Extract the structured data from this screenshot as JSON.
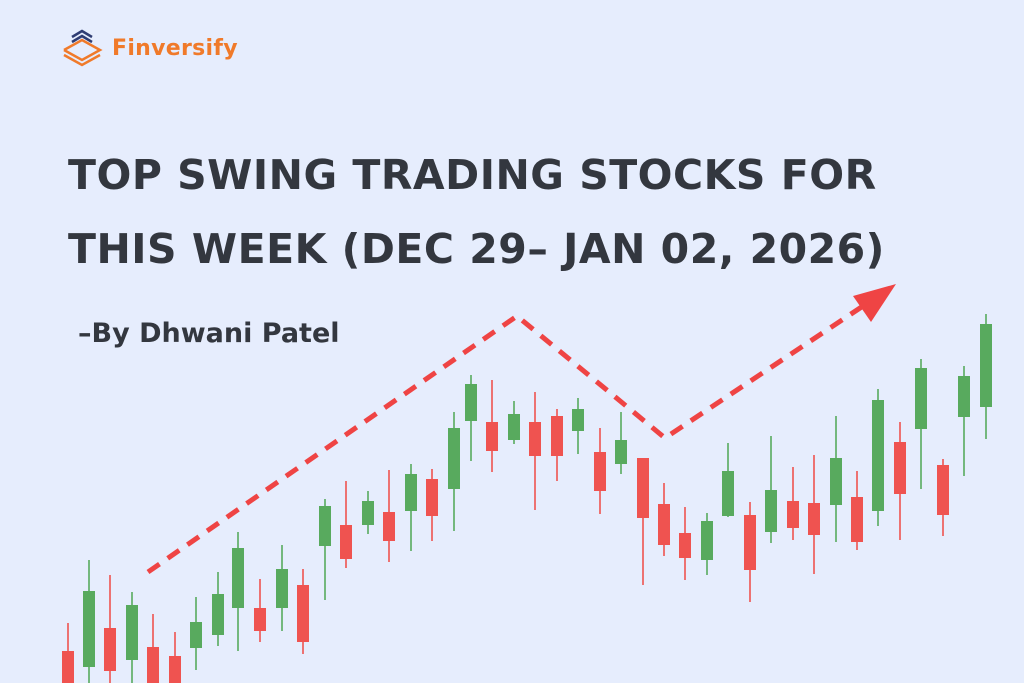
{
  "brand": {
    "name": "Finversify",
    "logo_icon": "stacked-layers-icon",
    "primary_color": "#f07a2a",
    "secondary_color": "#2f3d73"
  },
  "headline": {
    "line1": "TOP SWING TRADING STOCKS FOR",
    "line2": "THIS WEEK (DEC 29– JAN 02, 2026)"
  },
  "byline": "–By Dhwani Patel",
  "colors": {
    "background": "#e6edfd",
    "up_candle": "#58aa5e",
    "down_candle": "#ef5350",
    "trend_line": "#ef4444"
  }
}
